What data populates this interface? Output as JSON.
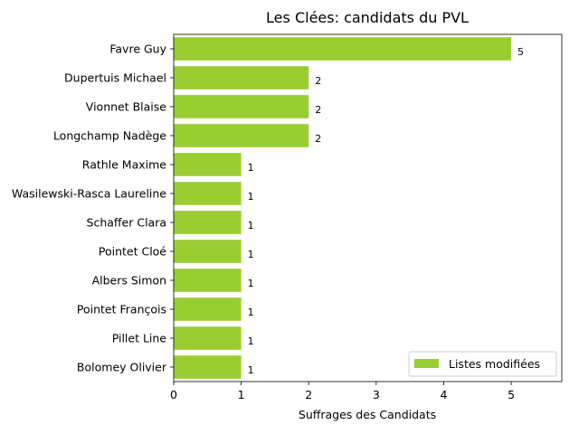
{
  "chart_data": {
    "type": "bar",
    "orientation": "horizontal",
    "title": "Les Clées: candidats du PVL",
    "xlabel": "Suffrages des Candidats",
    "ylabel": "",
    "xlim": [
      0,
      5.75
    ],
    "xticks": [
      "0",
      "1",
      "2",
      "3",
      "4",
      "5"
    ],
    "categories": [
      "Favre Guy",
      "Dupertuis Michael",
      "Vionnet Blaise",
      "Longchamp Nadège",
      "Rathle Maxime",
      "Wasilewski-Rasca Laureline",
      "Schaffer Clara",
      "Pointet Cloé",
      "Albers Simon",
      "Pointet François",
      "Pillet Line",
      "Bolomey Olivier"
    ],
    "series": [
      {
        "name": "Listes modifiées",
        "color": "#9acd32",
        "values": [
          5,
          2,
          2,
          2,
          1,
          1,
          1,
          1,
          1,
          1,
          1,
          1
        ],
        "labels": [
          "5",
          "2",
          "2",
          "2",
          "1",
          "1",
          "1",
          "1",
          "1",
          "1",
          "1",
          "1"
        ]
      }
    ],
    "legend": "bottom-right",
    "grid": false
  }
}
